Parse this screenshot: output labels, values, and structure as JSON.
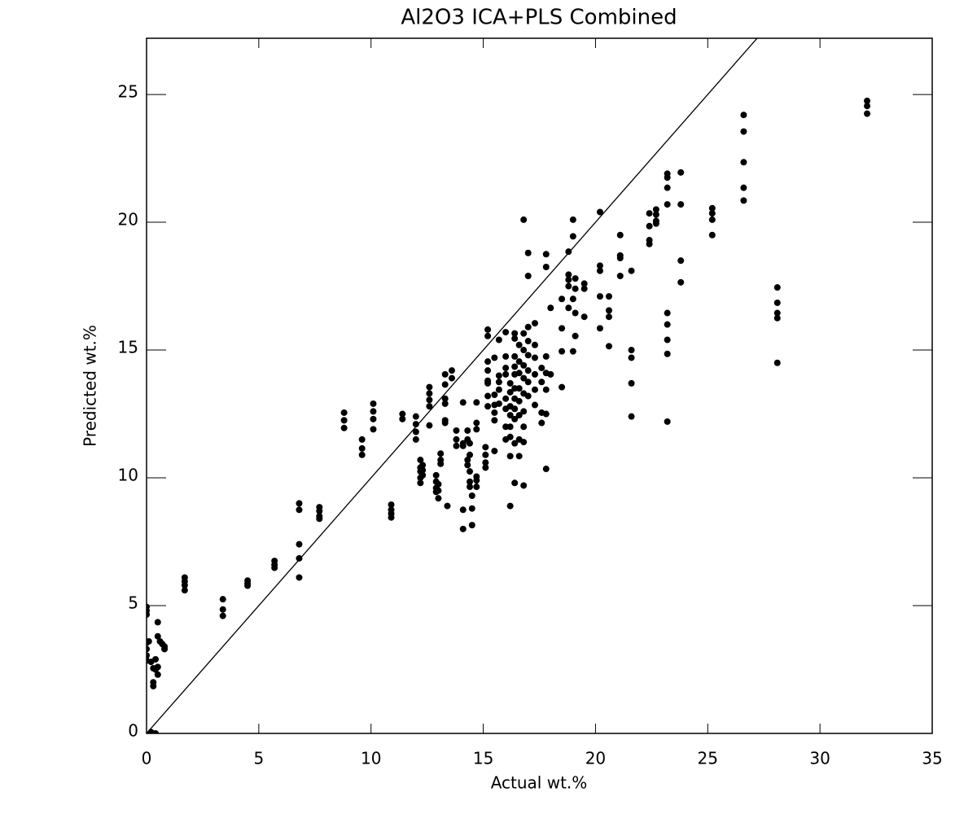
{
  "chart_data": {
    "type": "scatter",
    "title": "Al2O3 ICA+PLS Combined",
    "x_label": "Actual wt.%",
    "y_label": "Predicted wt.%",
    "xlim": [
      0,
      35
    ],
    "ylim": [
      0,
      27.2
    ],
    "xticks": [
      0,
      5,
      10,
      15,
      20,
      25,
      30,
      35
    ],
    "yticks": [
      0,
      5,
      10,
      15,
      20,
      25
    ],
    "color": "#000000",
    "identity_line": true,
    "mirror_ticks": true,
    "x": [
      0,
      0,
      0,
      0,
      0,
      0,
      0,
      0.1,
      0.2,
      0.3,
      0.3,
      0.3,
      0.4,
      0.5,
      0.5,
      0.5,
      0.6,
      0.7,
      0.8,
      0.8,
      0.4,
      0.2,
      0.4,
      0.5,
      1.7,
      1.7,
      1.7,
      1.7,
      3.4,
      3.4,
      3.4,
      4.5,
      4.5,
      4.5,
      5.7,
      5.7,
      5.7,
      6.8,
      6.8,
      6.8,
      6.8,
      6.8,
      7.7,
      7.7,
      7.7,
      7.7,
      8.8,
      8.8,
      8.8,
      9.6,
      9.6,
      9.6,
      10.1,
      10.1,
      10.1,
      10.1,
      10.9,
      10.9,
      10.9,
      10.9,
      11.4,
      11.4,
      12.0,
      12.0,
      12.0,
      12.0,
      12.2,
      12.2,
      12.2,
      12.2,
      12.2,
      12.3,
      12.3,
      12.3,
      12.6,
      12.6,
      12.6,
      12.6,
      12.6,
      12.9,
      12.9,
      12.9,
      12.9,
      13.0,
      13.0,
      13.0,
      13.1,
      13.1,
      13.1,
      13.3,
      13.3,
      13.3,
      13.3,
      13.3,
      13.3,
      13.4,
      13.6,
      13.6,
      13.8,
      13.8,
      13.8,
      14.1,
      14.1,
      14.1,
      14.1,
      14.1,
      14.3,
      14.3,
      14.3,
      14.3,
      14.4,
      14.4,
      14.4,
      14.4,
      14.4,
      14.5,
      14.5,
      14.5,
      14.7,
      14.7,
      14.7,
      14.7,
      14.7,
      14.7,
      15.1,
      15.1,
      15.1,
      15.1,
      15.2,
      15.2,
      15.2,
      15.2,
      15.2,
      15.2,
      15.2,
      15.2,
      15.5,
      15.5,
      15.5,
      15.5,
      15.5,
      15.5,
      15.7,
      15.7,
      15.7,
      15.7,
      15.7,
      16.0,
      16.0,
      16.0,
      16.0,
      16.0,
      16.0,
      16.0,
      16.0,
      16.2,
      16.2,
      16.2,
      16.2,
      16.2,
      16.2,
      16.2,
      16.2,
      16.4,
      16.4,
      16.4,
      16.4,
      16.4,
      16.4,
      16.4,
      16.4,
      16.4,
      16.4,
      16.4,
      16.6,
      16.6,
      16.6,
      16.6,
      16.6,
      16.6,
      16.6,
      16.6,
      16.8,
      16.8,
      16.8,
      16.8,
      16.8,
      16.8,
      16.8,
      16.8,
      16.8,
      16.8,
      17.0,
      17.0,
      17.0,
      17.0,
      17.0,
      17.0,
      17.0,
      17.0,
      17.3,
      17.3,
      17.3,
      17.3,
      17.3,
      17.3,
      17.6,
      17.6,
      17.6,
      17.6,
      17.8,
      17.8,
      17.8,
      17.8,
      17.8,
      17.8,
      17.8,
      18.0,
      18.0,
      18.5,
      18.5,
      18.5,
      18.5,
      18.8,
      18.8,
      18.8,
      18.8,
      18.8,
      19.0,
      19.0,
      19.0,
      19.0,
      19.1,
      19.1,
      19.1,
      19.1,
      19.5,
      19.5,
      19.5,
      20.2,
      20.2,
      20.2,
      20.2,
      20.2,
      20.6,
      20.6,
      20.6,
      20.6,
      21.1,
      21.1,
      21.1,
      21.1,
      21.6,
      21.6,
      21.6,
      21.6,
      21.6,
      22.4,
      22.4,
      22.4,
      22.4,
      22.7,
      22.7,
      22.7,
      22.7,
      23.2,
      23.2,
      23.2,
      23.2,
      23.2,
      23.2,
      23.2,
      23.2,
      23.2,
      23.8,
      23.8,
      23.8,
      23.8,
      25.2,
      25.2,
      25.2,
      25.2,
      26.6,
      26.6,
      26.6,
      26.6,
      26.6,
      28.1,
      28.1,
      28.1,
      28.1,
      28.1,
      32.1,
      32.1,
      32.1
    ],
    "y": [
      4.95,
      4.8,
      4.65,
      3.55,
      3.3,
      3.05,
      2.85,
      3.6,
      2.8,
      2.55,
      2.0,
      1.85,
      2.5,
      2.6,
      4.35,
      3.8,
      3.6,
      3.5,
      3.4,
      3.3,
      0,
      0.05,
      2.9,
      2.3,
      6.1,
      5.95,
      5.8,
      5.6,
      5.25,
      4.85,
      4.6,
      5.98,
      5.87,
      5.78,
      6.75,
      6.6,
      6.48,
      9.0,
      8.75,
      7.4,
      6.85,
      6.1,
      8.85,
      8.7,
      8.5,
      8.4,
      12.55,
      12.25,
      11.95,
      11.5,
      11.15,
      10.9,
      12.9,
      12.6,
      12.3,
      11.9,
      8.95,
      8.75,
      8.6,
      8.45,
      12.5,
      12.3,
      12.4,
      12.1,
      11.8,
      11.5,
      10.7,
      10.4,
      10.25,
      10.0,
      9.8,
      10.5,
      10.3,
      10.1,
      13.55,
      13.3,
      13.05,
      12.8,
      12.05,
      10.1,
      9.85,
      9.6,
      9.45,
      9.75,
      9.5,
      9.2,
      10.95,
      10.7,
      10.55,
      14.05,
      13.65,
      13.1,
      12.9,
      12.25,
      12.15,
      8.9,
      14.2,
      13.9,
      11.85,
      11.5,
      11.25,
      12.95,
      11.35,
      11.25,
      8.75,
      8.0,
      11.85,
      11.5,
      10.7,
      10.5,
      11.35,
      10.9,
      10.25,
      9.85,
      9.65,
      9.3,
      8.8,
      8.15,
      12.95,
      12.15,
      11.9,
      10.05,
      9.9,
      9.65,
      11.2,
      10.9,
      10.6,
      10.4,
      15.8,
      15.55,
      14.55,
      14.2,
      13.8,
      13.7,
      13.2,
      12.8,
      14.7,
      13.25,
      12.85,
      12.55,
      12.25,
      11.05,
      15.4,
      14.0,
      13.75,
      13.45,
      12.9,
      15.7,
      14.75,
      14.3,
      14.05,
      13.1,
      12.7,
      12.0,
      11.5,
      13.7,
      13.35,
      12.8,
      12.45,
      12.0,
      11.6,
      10.85,
      8.9,
      15.65,
      15.45,
      14.75,
      14.35,
      14.05,
      13.5,
      13.1,
      12.7,
      12.3,
      11.35,
      9.8,
      15.2,
      14.55,
      14.1,
      13.5,
      13.0,
      12.45,
      11.5,
      10.85,
      20.1,
      15.65,
      15.0,
      14.4,
      13.9,
      13.3,
      12.6,
      12.0,
      11.4,
      9.7,
      18.8,
      17.9,
      15.9,
      15.35,
      14.8,
      14.2,
      13.75,
      13.2,
      16.05,
      15.2,
      14.7,
      14.05,
      13.45,
      12.85,
      14.3,
      13.75,
      12.55,
      12.15,
      18.75,
      18.25,
      14.75,
      14.1,
      13.45,
      12.5,
      10.35,
      16.65,
      14.05,
      17.0,
      15.85,
      14.95,
      13.55,
      18.85,
      17.95,
      17.75,
      17.5,
      16.65,
      20.1,
      19.45,
      17.0,
      14.95,
      17.8,
      17.4,
      16.45,
      15.55,
      17.6,
      17.4,
      16.3,
      20.4,
      18.3,
      18.1,
      17.1,
      15.85,
      17.1,
      16.55,
      16.3,
      15.15,
      19.5,
      18.7,
      18.6,
      17.9,
      18.1,
      15.0,
      14.7,
      13.7,
      12.4,
      20.35,
      19.85,
      19.3,
      19.15,
      20.5,
      20.3,
      20.05,
      19.95,
      21.9,
      21.75,
      21.35,
      20.7,
      16.45,
      16.0,
      15.4,
      14.85,
      12.2,
      21.95,
      20.7,
      18.5,
      17.65,
      20.55,
      20.35,
      20.1,
      19.5,
      24.2,
      23.55,
      22.35,
      21.35,
      20.85,
      17.45,
      16.85,
      16.45,
      16.25,
      14.5,
      24.75,
      24.55,
      24.25
    ]
  }
}
